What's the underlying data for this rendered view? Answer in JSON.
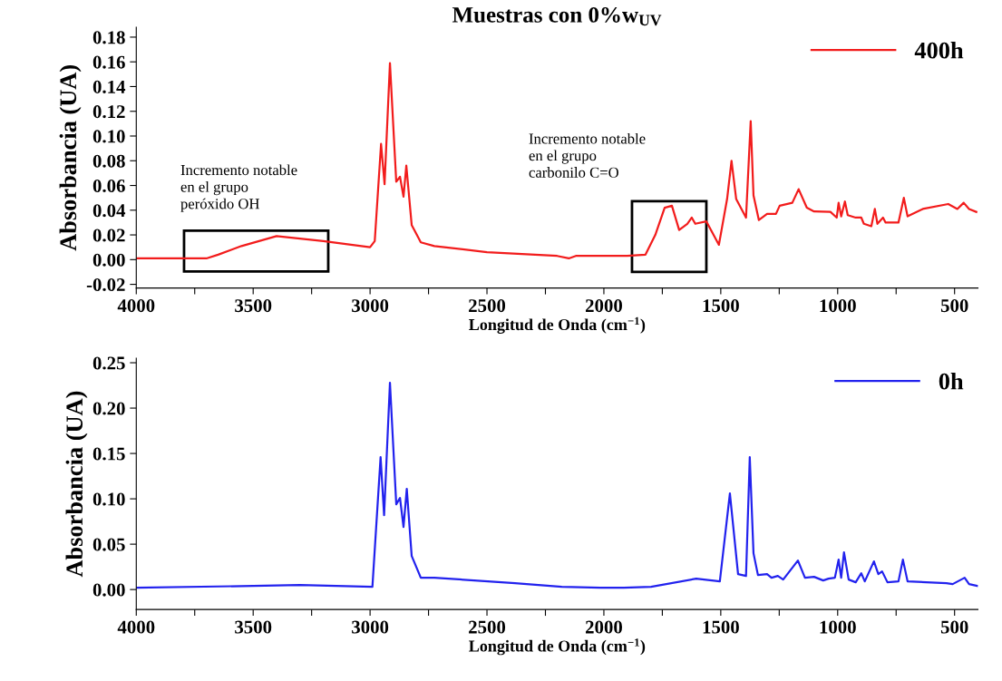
{
  "chart_data": [
    {
      "type": "line",
      "title": "Muestras con 0%w$_{UV}$",
      "xlabel": "Longitud de Onda (cm$^{−1}$)",
      "ylabel": "Absorbancia (UA)",
      "xlim": [
        4000,
        400
      ],
      "ylim": [
        -0.023,
        0.188
      ],
      "xticks": [
        {
          "value": 4000,
          "label": "4000"
        },
        {
          "value": 3750,
          "label": null
        },
        {
          "value": 3500,
          "label": "3500"
        },
        {
          "value": 3250,
          "label": null
        },
        {
          "value": 3000,
          "label": "3000"
        },
        {
          "value": 2750,
          "label": null
        },
        {
          "value": 2500,
          "label": "2500"
        },
        {
          "value": 2250,
          "label": null
        },
        {
          "value": 2000,
          "label": "2000"
        },
        {
          "value": 1750,
          "label": null
        },
        {
          "value": 1500,
          "label": "1500"
        },
        {
          "value": 1250,
          "label": null
        },
        {
          "value": 1000,
          "label": "1000"
        },
        {
          "value": 750,
          "label": null
        },
        {
          "value": 500,
          "label": "500"
        }
      ],
      "yticks": [
        {
          "value": -0.02,
          "label": "-0.02"
        },
        {
          "value": 0.0,
          "label": "0.00"
        },
        {
          "value": 0.02,
          "label": "0.02"
        },
        {
          "value": 0.04,
          "label": "0.04"
        },
        {
          "value": 0.06,
          "label": "0.06"
        },
        {
          "value": 0.08,
          "label": "0.08"
        },
        {
          "value": 0.1,
          "label": "0.10"
        },
        {
          "value": 0.12,
          "label": "0.12"
        },
        {
          "value": 0.14,
          "label": "0.14"
        },
        {
          "value": 0.16,
          "label": "0.16"
        },
        {
          "value": 0.18,
          "label": "0.18"
        }
      ],
      "legend": "top right",
      "grid": false,
      "series": [
        {
          "name": "400h",
          "color": "#f21c1c",
          "x": [
            4000,
            3700,
            3650,
            3550,
            3400,
            3200,
            3000,
            2980,
            2953,
            2938,
            2915,
            2888,
            2872,
            2857,
            2845,
            2822,
            2783,
            2725,
            2500,
            2200,
            2150,
            2120,
            2000,
            1900,
            1822,
            1780,
            1740,
            1709,
            1678,
            1643,
            1624,
            1609,
            1562,
            1508,
            1473,
            1454,
            1434,
            1392,
            1372,
            1360,
            1337,
            1302,
            1264,
            1248,
            1194,
            1167,
            1132,
            1101,
            1031,
            1004,
            996,
            985,
            969,
            957,
            923,
            899,
            888,
            856,
            841,
            830,
            806,
            795,
            740,
            717,
            701,
            636,
            527,
            488,
            461,
            438,
            407
          ],
          "values": [
            0.001,
            0.001,
            0.004,
            0.011,
            0.019,
            0.015,
            0.01,
            0.015,
            0.0936,
            0.061,
            0.159,
            0.063,
            0.067,
            0.051,
            0.076,
            0.028,
            0.014,
            0.011,
            0.006,
            0.003,
            0.001,
            0.003,
            0.003,
            0.003,
            0.004,
            0.02,
            0.042,
            0.0436,
            0.024,
            0.029,
            0.034,
            0.029,
            0.031,
            0.012,
            0.049,
            0.08,
            0.049,
            0.034,
            0.112,
            0.052,
            0.032,
            0.037,
            0.037,
            0.0436,
            0.046,
            0.057,
            0.042,
            0.039,
            0.0386,
            0.034,
            0.046,
            0.035,
            0.047,
            0.036,
            0.034,
            0.034,
            0.029,
            0.027,
            0.041,
            0.029,
            0.034,
            0.03,
            0.03,
            0.05,
            0.035,
            0.041,
            0.045,
            0.041,
            0.046,
            0.041,
            0.0386
          ]
        }
      ],
      "annotations": [
        {
          "text": "Incremento notable\nen el grupo\nperóxido OH",
          "x": 3400,
          "y": 0.019
        },
        {
          "text": "Incremento notable\nen el grupo\ncarbonilo C=O",
          "x": 1709,
          "y": 0.0436
        }
      ]
    },
    {
      "type": "line",
      "xlabel": "Longitud de Onda (cm$^{−1}$)",
      "ylabel": "Absorbancia (UA)",
      "xlim": [
        4000,
        400
      ],
      "ylim": [
        -0.022,
        0.255
      ],
      "xticks": [
        {
          "value": 4000,
          "label": "4000"
        },
        {
          "value": 3750,
          "label": null
        },
        {
          "value": 3500,
          "label": "3500"
        },
        {
          "value": 3250,
          "label": null
        },
        {
          "value": 3000,
          "label": "3000"
        },
        {
          "value": 2750,
          "label": null
        },
        {
          "value": 2500,
          "label": "2500"
        },
        {
          "value": 2250,
          "label": null
        },
        {
          "value": 2000,
          "label": "2000"
        },
        {
          "value": 1750,
          "label": null
        },
        {
          "value": 1500,
          "label": "1500"
        },
        {
          "value": 1250,
          "label": null
        },
        {
          "value": 1000,
          "label": "1000"
        },
        {
          "value": 750,
          "label": null
        },
        {
          "value": 500,
          "label": "500"
        }
      ],
      "yticks": [
        {
          "value": 0.0,
          "label": "0.00"
        },
        {
          "value": 0.05,
          "label": "0.05"
        },
        {
          "value": 0.1,
          "label": "0.10"
        },
        {
          "value": 0.15,
          "label": "0.15"
        },
        {
          "value": 0.2,
          "label": "0.20"
        },
        {
          "value": 0.25,
          "label": "0.25"
        }
      ],
      "legend": "top right",
      "grid": false,
      "series": [
        {
          "name": "0h",
          "color": "#2222ee",
          "x": [
            4000,
            3500,
            3300,
            2990,
            2955,
            2940,
            2915,
            2888,
            2872,
            2857,
            2843,
            2822,
            2783,
            2725,
            2380,
            2180,
            2015,
            1914,
            1798,
            1605,
            1504,
            1461,
            1426,
            1392,
            1376,
            1360,
            1341,
            1302,
            1283,
            1256,
            1233,
            1170,
            1140,
            1101,
            1062,
            1039,
            1012,
            996,
            985,
            973,
            953,
            923,
            899,
            884,
            845,
            826,
            810,
            787,
            740,
            721,
            701,
            535,
            508,
            457,
            438,
            403
          ],
          "values": [
            0.002,
            0.004,
            0.005,
            0.003,
            0.146,
            0.082,
            0.228,
            0.094,
            0.101,
            0.069,
            0.111,
            0.037,
            0.013,
            0.013,
            0.007,
            0.003,
            0.002,
            0.002,
            0.003,
            0.012,
            0.009,
            0.106,
            0.017,
            0.015,
            0.146,
            0.04,
            0.016,
            0.017,
            0.013,
            0.015,
            0.011,
            0.032,
            0.013,
            0.014,
            0.01,
            0.012,
            0.013,
            0.033,
            0.013,
            0.041,
            0.011,
            0.008,
            0.018,
            0.009,
            0.031,
            0.017,
            0.02,
            0.008,
            0.009,
            0.033,
            0.009,
            0.007,
            0.006,
            0.013,
            0.006,
            0.004
          ]
        }
      ]
    }
  ]
}
